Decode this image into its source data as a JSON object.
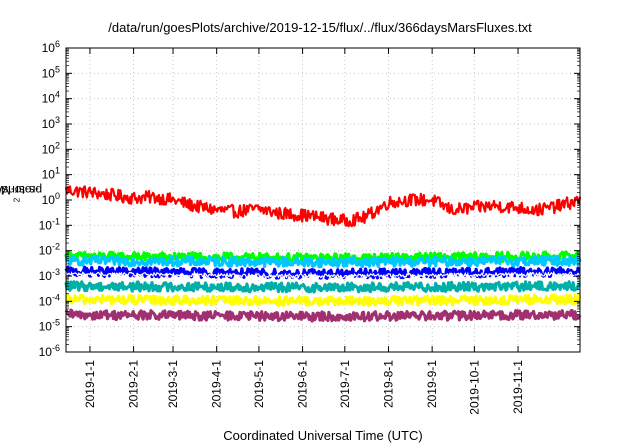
{
  "chart_data": {
    "type": "line",
    "title": "/data/run/goesPlots/archive/2019-12-15/flux/../flux/366daysMarsFluxes.txt",
    "xlabel": "Coordinated Universal Time (UTC)",
    "ylabel_pre": "protons/cm",
    "ylabel_sup": "2",
    "ylabel_post": "-s-sr-MeV",
    "x_range": [
      "2018-12-15",
      "2019-12-15"
    ],
    "x_ticks": [
      "2019-1-1",
      "2019-2-1",
      "2019-3-1",
      "2019-4-1",
      "2019-5-1",
      "2019-6-1",
      "2019-7-1",
      "2019-8-1",
      "2019-9-1",
      "2019-10-1",
      "2019-11-1"
    ],
    "y_scale": "log",
    "ylim": [
      1e-06,
      1000000.0
    ],
    "y_tick_exponents": [
      -6,
      -5,
      -4,
      -3,
      -2,
      -1,
      0,
      1,
      2,
      3,
      4,
      5,
      6
    ],
    "grid": true,
    "legend": "none",
    "series": [
      {
        "color": "#ff0000",
        "band": true,
        "points": [
          [
            "2018-12-15",
            2.5
          ],
          [
            "2019-1-1",
            2.0
          ],
          [
            "2019-1-15",
            1.6
          ],
          [
            "2019-2-1",
            1.2
          ],
          [
            "2019-2-15",
            1.3
          ],
          [
            "2019-3-1",
            1.0
          ],
          [
            "2019-3-15",
            0.6
          ],
          [
            "2019-4-1",
            0.4
          ],
          [
            "2019-4-15",
            0.35
          ],
          [
            "2019-5-1",
            0.45
          ],
          [
            "2019-5-15",
            0.3
          ],
          [
            "2019-6-1",
            0.25
          ],
          [
            "2019-6-15",
            0.2
          ],
          [
            "2019-7-1",
            0.15
          ],
          [
            "2019-7-15",
            0.2
          ],
          [
            "2019-8-1",
            0.8
          ],
          [
            "2019-8-15",
            1.0
          ],
          [
            "2019-9-1",
            1.0
          ],
          [
            "2019-9-15",
            0.4
          ],
          [
            "2019-10-1",
            0.5
          ],
          [
            "2019-10-15",
            0.6
          ],
          [
            "2019-11-1",
            0.5
          ],
          [
            "2019-11-15",
            0.4
          ],
          [
            "2019-12-1",
            0.6
          ],
          [
            "2019-12-15",
            1.0
          ]
        ]
      },
      {
        "color": "#00ff00",
        "band": true,
        "points": [
          [
            "2018-12-15",
            0.006
          ],
          [
            "2019-6-15",
            0.005
          ],
          [
            "2019-12-15",
            0.006
          ]
        ]
      },
      {
        "color": "#00c8ff",
        "band": true,
        "points": [
          [
            "2018-12-15",
            0.004
          ],
          [
            "2019-6-15",
            0.0035
          ],
          [
            "2019-12-15",
            0.004
          ]
        ]
      },
      {
        "color": "#0000ff",
        "band": true,
        "points": [
          [
            "2018-12-15",
            0.0015
          ],
          [
            "2019-6-15",
            0.0012
          ],
          [
            "2019-12-15",
            0.0015
          ]
        ]
      },
      {
        "color": "#ffffff",
        "band": false,
        "points": [
          [
            "2018-12-15",
            0.0012
          ],
          [
            "2019-6-15",
            0.001
          ],
          [
            "2019-12-15",
            0.0012
          ]
        ]
      },
      {
        "color": "#00b0a8",
        "band": true,
        "points": [
          [
            "2018-12-15",
            0.0004
          ],
          [
            "2019-6-15",
            0.00035
          ],
          [
            "2019-12-15",
            0.0004
          ]
        ]
      },
      {
        "color": "#ffff00",
        "band": true,
        "points": [
          [
            "2018-12-15",
            0.00012
          ],
          [
            "2019-6-15",
            0.0001
          ],
          [
            "2019-12-15",
            0.00012
          ]
        ]
      },
      {
        "color": "#a03070",
        "band": true,
        "points": [
          [
            "2018-12-15",
            3e-05
          ],
          [
            "2019-6-15",
            2.5e-05
          ],
          [
            "2019-12-15",
            3e-05
          ]
        ]
      }
    ]
  }
}
